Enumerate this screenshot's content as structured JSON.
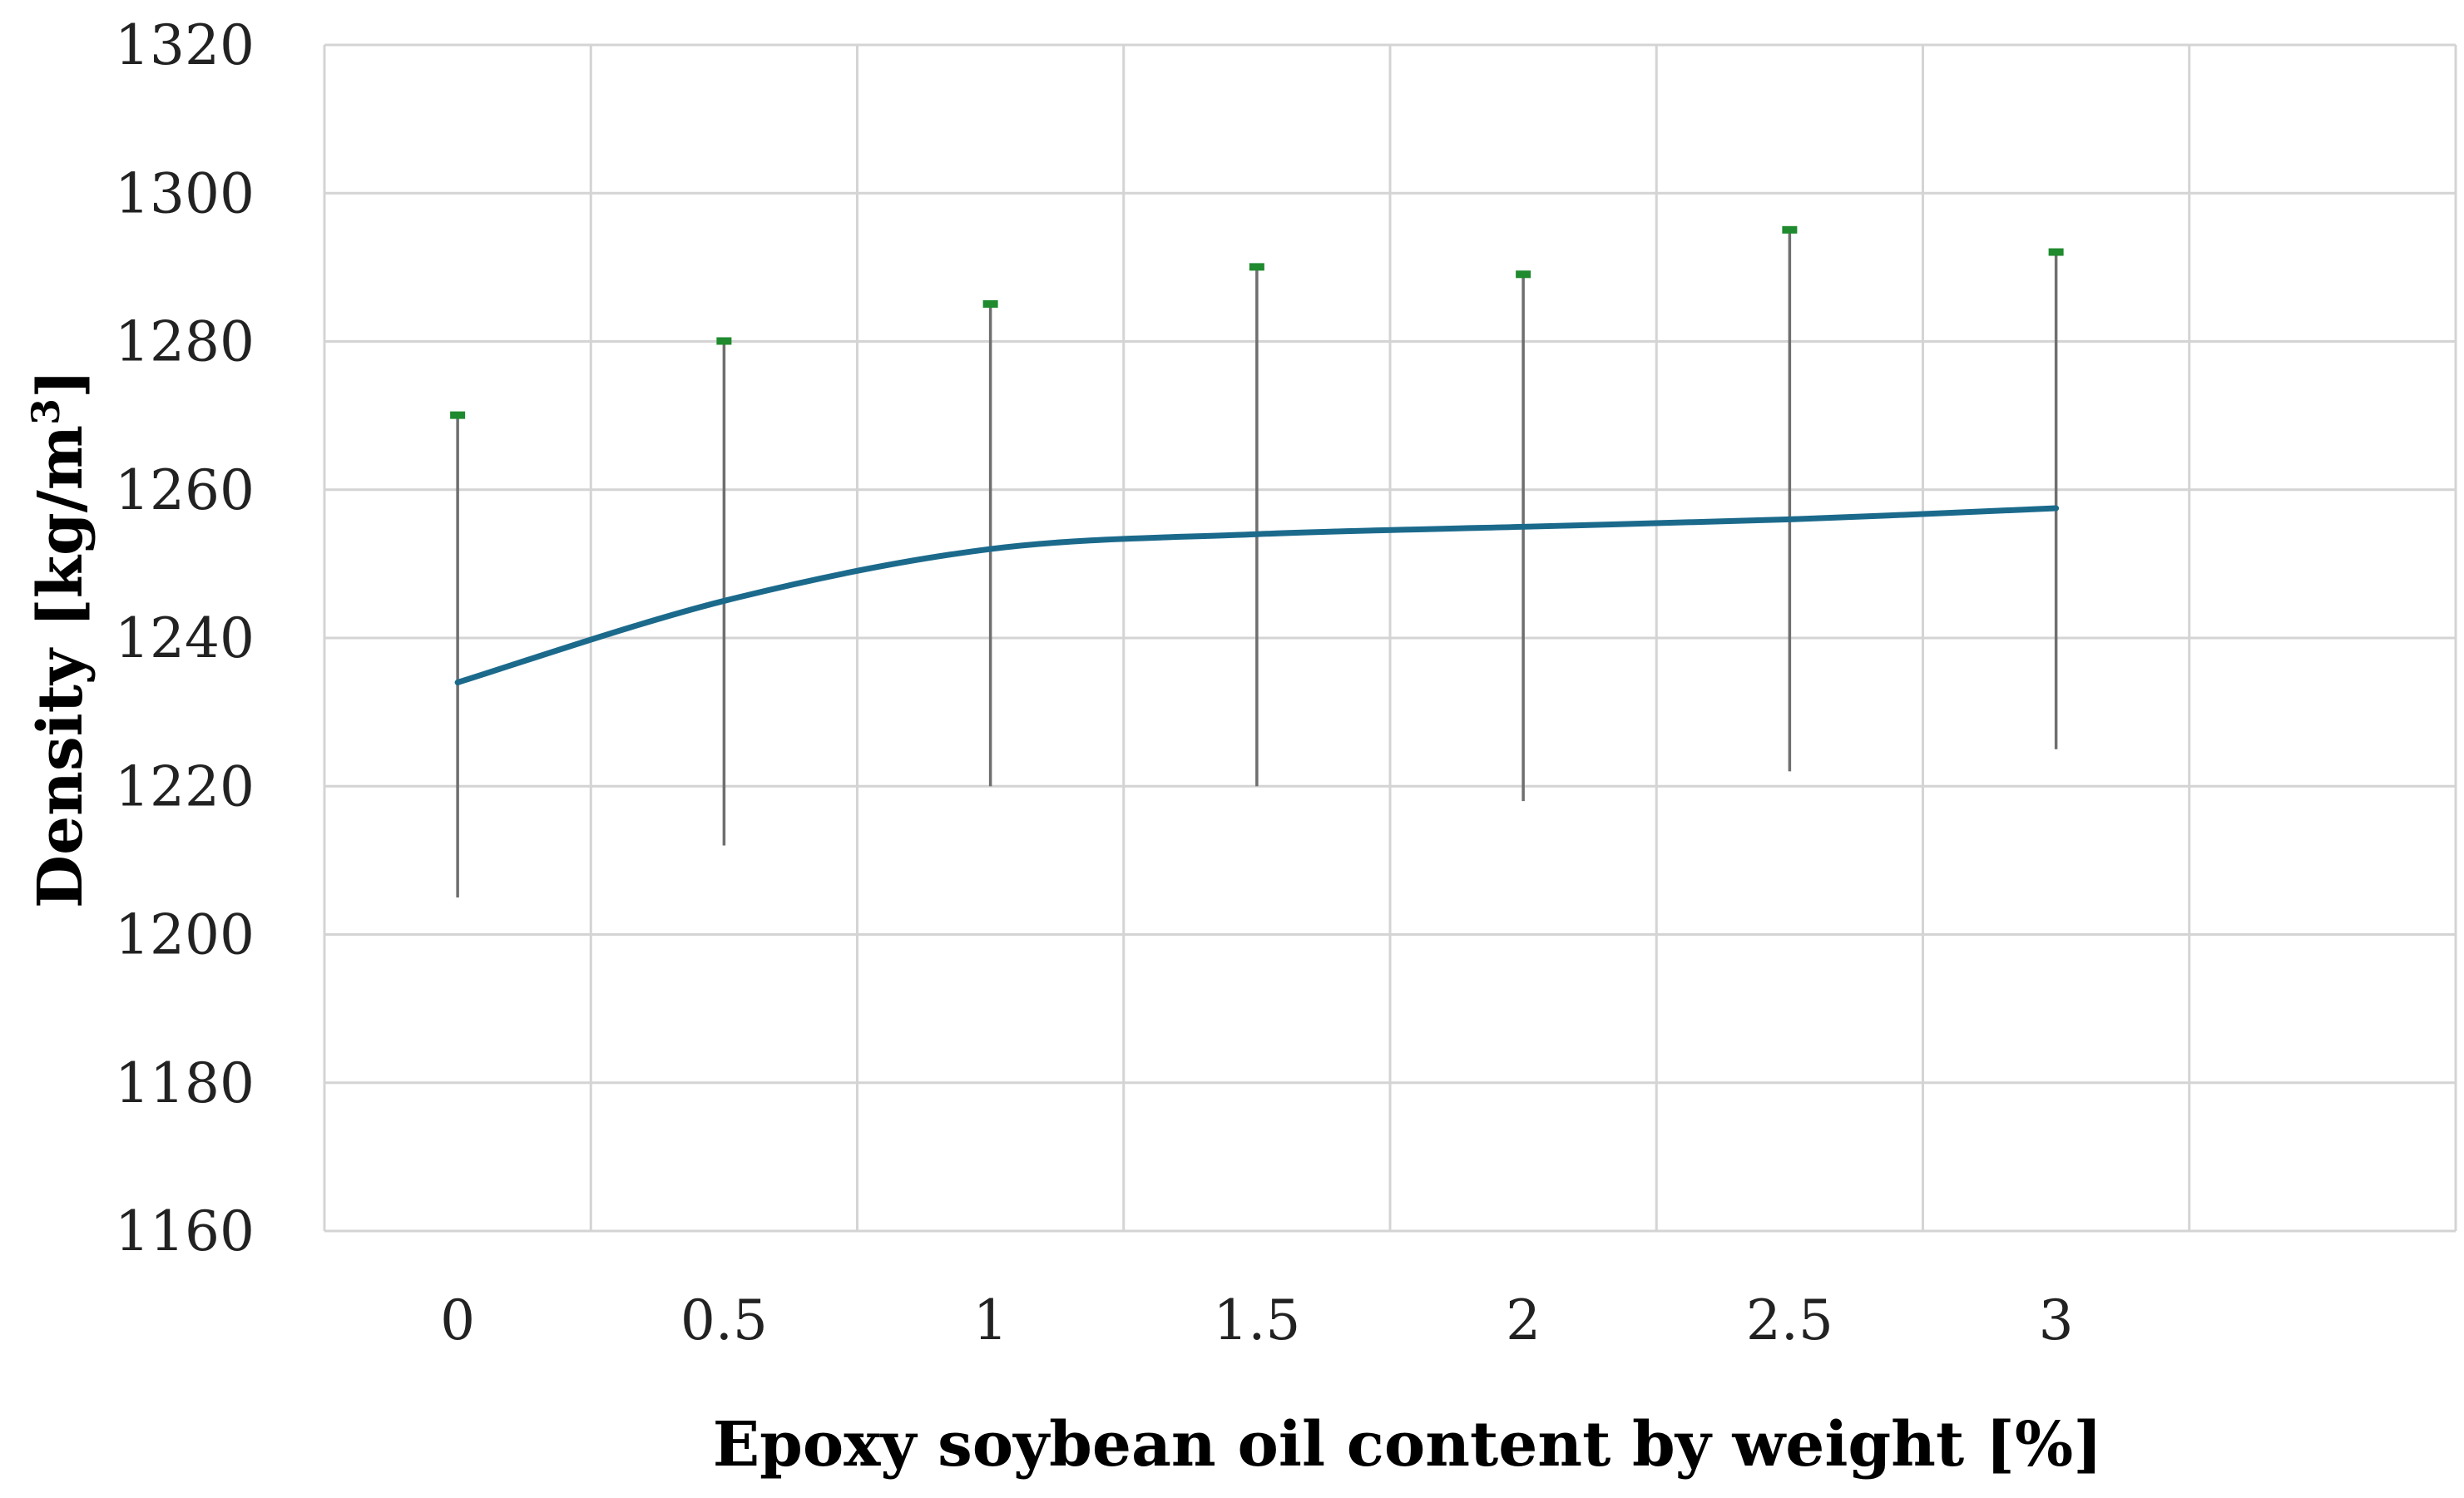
{
  "chart_data": {
    "type": "line",
    "x": [
      "0",
      "0.5",
      "1",
      "1.5",
      "2",
      "2.5",
      "3"
    ],
    "series": [
      {
        "values": [
          1234,
          1245,
          1252,
          1254,
          1255,
          1256,
          1257.5
        ],
        "error_high": [
          1270,
          1280,
          1285,
          1290,
          1289,
          1295,
          1292
        ],
        "error_low": [
          1205,
          1212,
          1220,
          1220,
          1218,
          1222,
          1225
        ]
      }
    ],
    "xlabel": "Epoxy soybean oil content by weight [%]",
    "ylabel_main": "Density [kg/m",
    "ylabel_sup": "3",
    "ylabel_end": "]",
    "ylim": [
      1160,
      1320
    ],
    "yticks": [
      "1160",
      "1180",
      "1200",
      "1220",
      "1240",
      "1260",
      "1280",
      "1300",
      "1320"
    ],
    "grid": "both",
    "legend": "none",
    "colors": {
      "line": "#1b6a8c",
      "error_bar": "#6f6f6f",
      "error_cap": "#1f8a2e",
      "grid": "#d4d4d4"
    }
  }
}
